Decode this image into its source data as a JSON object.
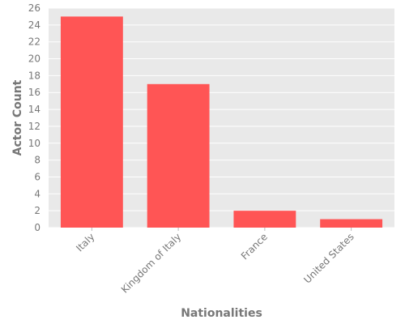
{
  "chart_data": {
    "type": "bar",
    "title": "",
    "xlabel": "Nationalities",
    "ylabel": "Actor Count",
    "categories": [
      "Italy",
      "Kingdom of Italy",
      "France",
      "United States"
    ],
    "values": [
      25,
      17,
      2,
      1
    ],
    "ylim": [
      0,
      26
    ],
    "yticks": [
      0,
      2,
      4,
      6,
      8,
      10,
      12,
      14,
      16,
      18,
      20,
      22,
      24,
      26
    ],
    "grid": true,
    "legend": "none",
    "colors": {
      "bar": "#ff5555",
      "plot_background": "#e9e9e9",
      "grid": "#ffffff",
      "text": "#777777"
    }
  }
}
